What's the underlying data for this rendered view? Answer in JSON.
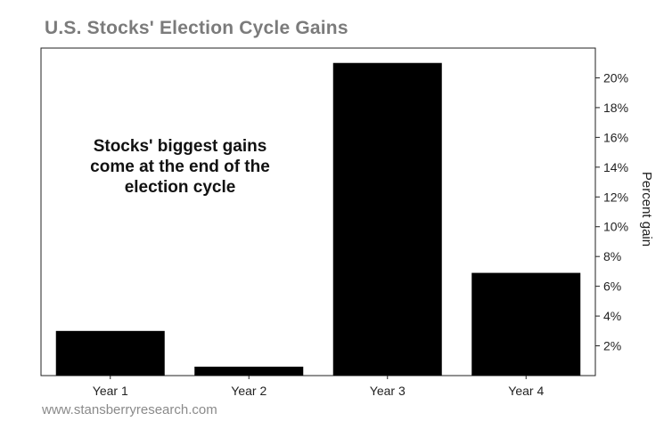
{
  "chart_data": {
    "type": "bar",
    "title": "U.S. Stocks' Election Cycle Gains",
    "categories": [
      "Year 1",
      "Year 2",
      "Year 3",
      "Year 4"
    ],
    "values": [
      3.0,
      0.6,
      21.0,
      6.9
    ],
    "ylabel": "Percent gain",
    "y_axis_side": "right",
    "ylim": [
      0,
      22
    ],
    "yticks": [
      2,
      4,
      6,
      8,
      10,
      12,
      14,
      16,
      18,
      20
    ],
    "ytick_labels": [
      "2%",
      "4%",
      "6%",
      "8%",
      "10%",
      "12%",
      "14%",
      "16%",
      "18%",
      "20%"
    ],
    "bar_color": "#000000",
    "grid": false,
    "annotation": [
      "Stocks' biggest gains",
      "come at the end of the",
      "election cycle"
    ]
  },
  "footer": "www.stansberryresearch.com"
}
